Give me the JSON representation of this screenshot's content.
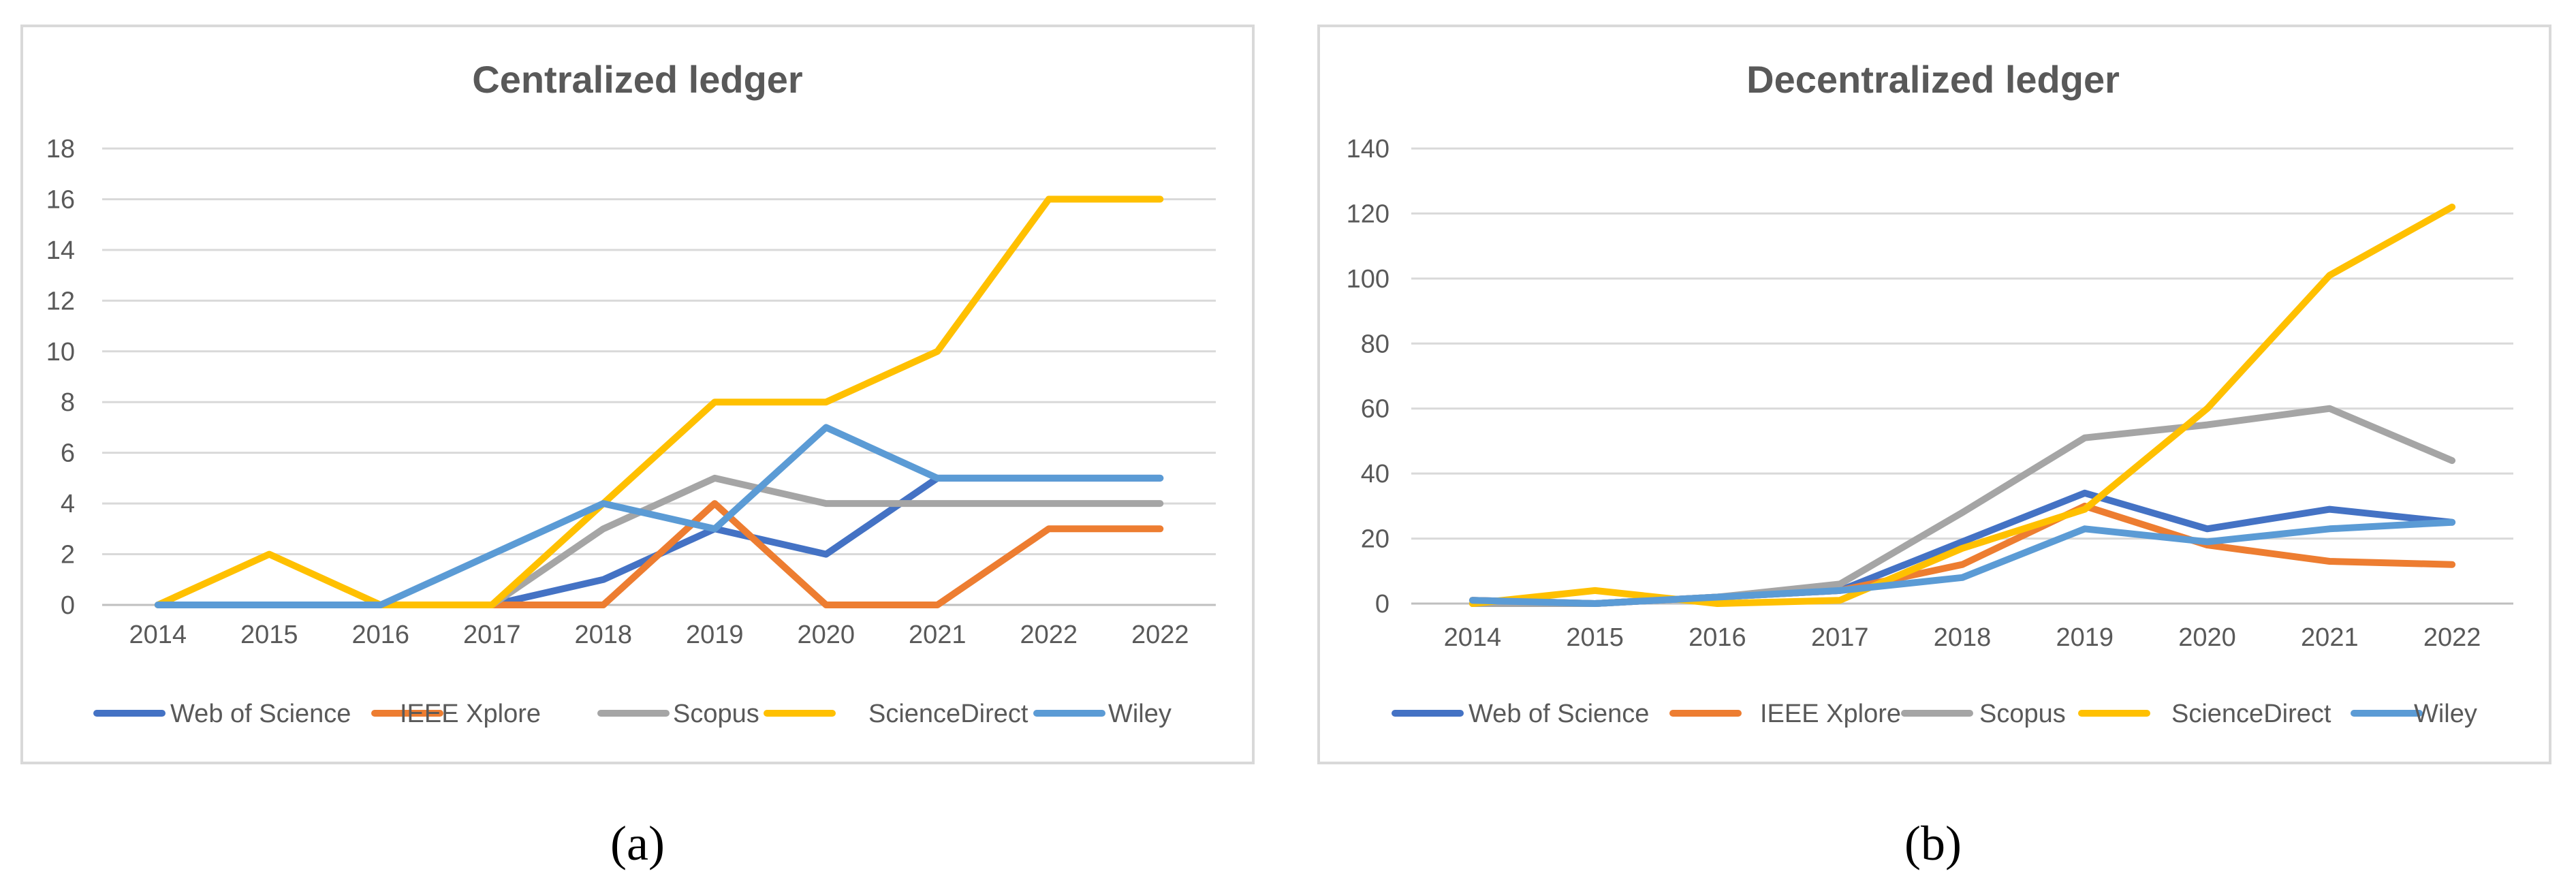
{
  "colors": {
    "web_of_science": "#4472C4",
    "ieee_xplore": "#ED7D31",
    "scopus": "#A5A5A5",
    "sciencedirect": "#FFC000",
    "wiley": "#5B9BD5",
    "gridline": "#D9D9D9",
    "frame": "#D9D9D9",
    "text": "#595959"
  },
  "chart_data": [
    {
      "type": "line",
      "title": "Centralized ledger",
      "caption": "(a)",
      "xlabel": "",
      "ylabel": "",
      "categories": [
        "2014",
        "2015",
        "2016",
        "2017",
        "2018",
        "2019",
        "2020",
        "2021",
        "2022",
        "2022"
      ],
      "ylim": [
        0,
        18
      ],
      "yticks": [
        "0",
        "2",
        "4",
        "6",
        "8",
        "10",
        "12",
        "14",
        "16",
        "18"
      ],
      "grid": true,
      "legend_position": "bottom",
      "series": [
        {
          "name": "Web of Science",
          "color_key": "web_of_science",
          "values": [
            null,
            null,
            null,
            0,
            1,
            3,
            2,
            5,
            5,
            5
          ]
        },
        {
          "name": "IEEE Xplore",
          "color_key": "ieee_xplore",
          "values": [
            null,
            null,
            null,
            0,
            0,
            4,
            0,
            0,
            3,
            3
          ]
        },
        {
          "name": "Scopus",
          "color_key": "scopus",
          "values": [
            null,
            null,
            null,
            0,
            3,
            5,
            4,
            4,
            4,
            4
          ]
        },
        {
          "name": "ScienceDirect",
          "color_key": "sciencedirect",
          "values": [
            0,
            2,
            0,
            0,
            4,
            8,
            8,
            10,
            16,
            16
          ]
        },
        {
          "name": "Wiley",
          "color_key": "wiley",
          "values": [
            0,
            0,
            0,
            2,
            4,
            3,
            7,
            5,
            5,
            5
          ]
        }
      ]
    },
    {
      "type": "line",
      "title": "Decentralized ledger",
      "caption": "(b)",
      "xlabel": "",
      "ylabel": "",
      "categories": [
        "2014",
        "2015",
        "2016",
        "2017",
        "2018",
        "2019",
        "2020",
        "2021",
        "2022"
      ],
      "ylim": [
        0,
        140
      ],
      "yticks": [
        "0",
        "20",
        "40",
        "60",
        "80",
        "100",
        "120",
        "140"
      ],
      "grid": true,
      "legend_position": "bottom",
      "series": [
        {
          "name": "Web of Science",
          "color_key": "web_of_science",
          "values": [
            1,
            0,
            2,
            4,
            19,
            34,
            23,
            29,
            25
          ]
        },
        {
          "name": "IEEE Xplore",
          "color_key": "ieee_xplore",
          "values": [
            1,
            0,
            2,
            4,
            12,
            30,
            18,
            13,
            12
          ]
        },
        {
          "name": "Scopus",
          "color_key": "scopus",
          "values": [
            0,
            0,
            2,
            6,
            28,
            51,
            55,
            60,
            44
          ]
        },
        {
          "name": "ScienceDirect",
          "color_key": "sciencedirect",
          "values": [
            0,
            4,
            0,
            1,
            17,
            29,
            60,
            101,
            122
          ]
        },
        {
          "name": "Wiley",
          "color_key": "wiley",
          "values": [
            1,
            0,
            2,
            4,
            8,
            23,
            19,
            23,
            25
          ]
        }
      ]
    }
  ]
}
